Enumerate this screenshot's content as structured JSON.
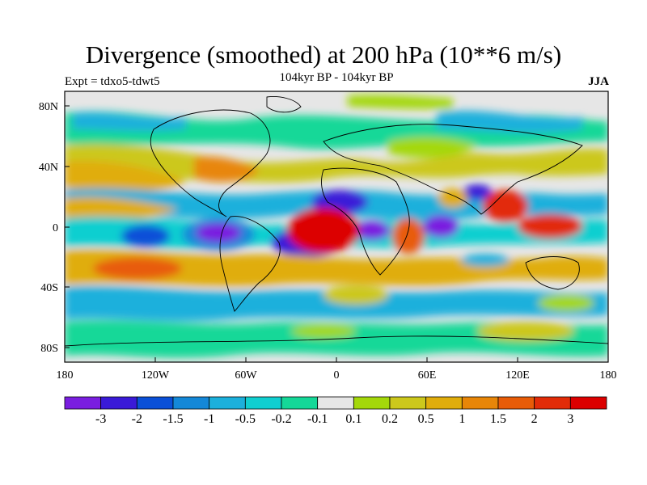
{
  "title": "Divergence (smoothed) at 200 hPa (10**6 m/s)",
  "experiment": "Expt = tdxo5-tdwt5",
  "period": "104kyr BP - 104kyr BP",
  "season": "JJA",
  "axes": {
    "lat_ticks": [
      "80N",
      "40N",
      "0",
      "40S",
      "80S"
    ],
    "lon_ticks": [
      "180",
      "120W",
      "60W",
      "0",
      "60E",
      "120E",
      "180"
    ]
  },
  "colorbar": {
    "labels": [
      "-3",
      "-2",
      "-1.5",
      "-1",
      "-0.5",
      "-0.2",
      "-0.1",
      "0.1",
      "0.2",
      "0.5",
      "1",
      "1.5",
      "2",
      "3"
    ],
    "colors": [
      "#7a1ee0",
      "#3a1ad8",
      "#0a50d8",
      "#1488d8",
      "#1cb0dc",
      "#10cfd0",
      "#14d898",
      "#e6e6e6",
      "#a4d80a",
      "#ccc81c",
      "#e0ad0c",
      "#e88608",
      "#e85c08",
      "#e22c08",
      "#dc0000"
    ]
  },
  "map_regions": [
    {
      "name": "strong-convergence-south-america",
      "level": 0
    },
    {
      "name": "strong-convergence-central-pacific",
      "level": 0
    },
    {
      "name": "strong-convergence-central-africa",
      "level": 0
    },
    {
      "name": "convergence-indian-ocean",
      "level": 1
    },
    {
      "name": "strong-divergence-tropical-atlantic",
      "level": 14
    },
    {
      "name": "divergence-south-asia",
      "level": 13
    },
    {
      "name": "divergence-maritime-continent",
      "level": 12
    },
    {
      "name": "divergence-south-pacific",
      "level": 11
    },
    {
      "name": "divergence-north-pacific",
      "level": 10
    }
  ]
}
